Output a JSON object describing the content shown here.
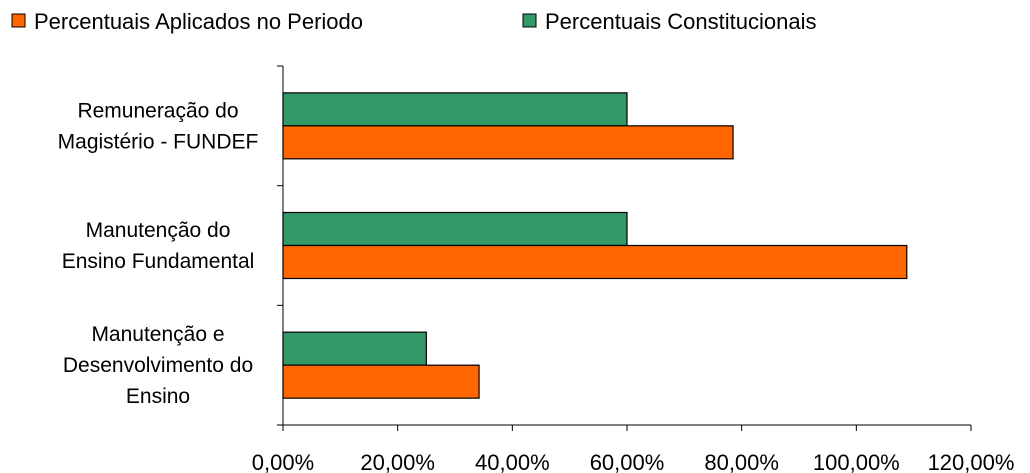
{
  "chart_data": {
    "type": "bar",
    "orientation": "horizontal",
    "categories": [
      [
        "Remuneração do",
        "Magistério - FUNDEF"
      ],
      [
        "Manutenção do",
        "Ensino Fundamental"
      ],
      [
        "Manutenção e",
        "Desenvolvimento do",
        "Ensino"
      ]
    ],
    "series": [
      {
        "name": "Percentuais Aplicados no Periodo",
        "color": "#ff6600",
        "values": [
          78.5,
          108.8,
          34.2
        ]
      },
      {
        "name": "Percentuais Constitucionais",
        "color": "#339966",
        "values": [
          60,
          60,
          25
        ]
      }
    ],
    "xlim": [
      0,
      120
    ],
    "xticks": [
      "0,00%",
      "20,00%",
      "40,00%",
      "60,00%",
      "80,00%",
      "100,00%",
      "120,00%"
    ],
    "legend": "top",
    "grid": false
  }
}
